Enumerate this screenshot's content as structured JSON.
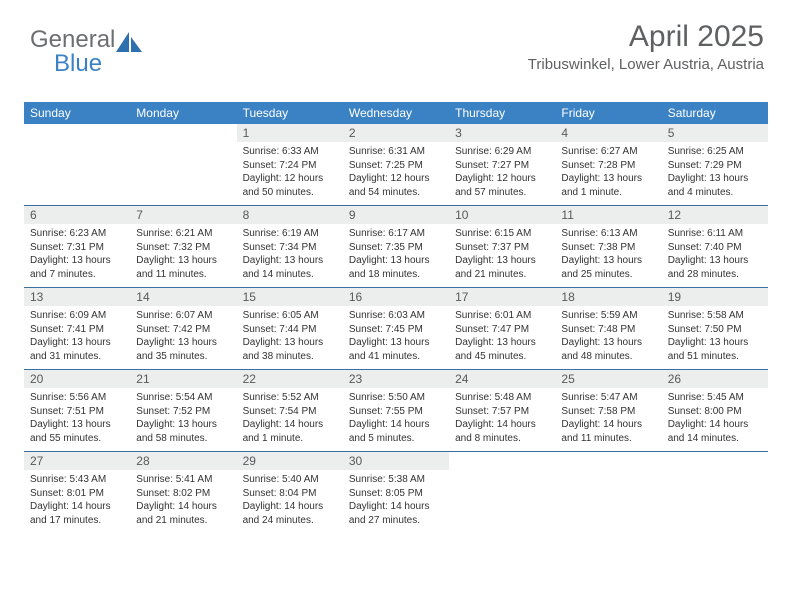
{
  "logo": {
    "word1": "General",
    "word2": "Blue"
  },
  "title": "April 2025",
  "location": "Tribuswinkel, Lower Austria, Austria",
  "colors": {
    "header_bar": "#3b82c4",
    "week_divider": "#3b6fa0",
    "daynum_band": "#eceded",
    "text_muted": "#5f6062"
  },
  "days_of_week": [
    "Sunday",
    "Monday",
    "Tuesday",
    "Wednesday",
    "Thursday",
    "Friday",
    "Saturday"
  ],
  "weeks": [
    [
      {
        "blank": true
      },
      {
        "blank": true
      },
      {
        "n": "1",
        "sunrise": "Sunrise: 6:33 AM",
        "sunset": "Sunset: 7:24 PM",
        "daylight": "Daylight: 12 hours and 50 minutes."
      },
      {
        "n": "2",
        "sunrise": "Sunrise: 6:31 AM",
        "sunset": "Sunset: 7:25 PM",
        "daylight": "Daylight: 12 hours and 54 minutes."
      },
      {
        "n": "3",
        "sunrise": "Sunrise: 6:29 AM",
        "sunset": "Sunset: 7:27 PM",
        "daylight": "Daylight: 12 hours and 57 minutes."
      },
      {
        "n": "4",
        "sunrise": "Sunrise: 6:27 AM",
        "sunset": "Sunset: 7:28 PM",
        "daylight": "Daylight: 13 hours and 1 minute."
      },
      {
        "n": "5",
        "sunrise": "Sunrise: 6:25 AM",
        "sunset": "Sunset: 7:29 PM",
        "daylight": "Daylight: 13 hours and 4 minutes."
      }
    ],
    [
      {
        "n": "6",
        "sunrise": "Sunrise: 6:23 AM",
        "sunset": "Sunset: 7:31 PM",
        "daylight": "Daylight: 13 hours and 7 minutes."
      },
      {
        "n": "7",
        "sunrise": "Sunrise: 6:21 AM",
        "sunset": "Sunset: 7:32 PM",
        "daylight": "Daylight: 13 hours and 11 minutes."
      },
      {
        "n": "8",
        "sunrise": "Sunrise: 6:19 AM",
        "sunset": "Sunset: 7:34 PM",
        "daylight": "Daylight: 13 hours and 14 minutes."
      },
      {
        "n": "9",
        "sunrise": "Sunrise: 6:17 AM",
        "sunset": "Sunset: 7:35 PM",
        "daylight": "Daylight: 13 hours and 18 minutes."
      },
      {
        "n": "10",
        "sunrise": "Sunrise: 6:15 AM",
        "sunset": "Sunset: 7:37 PM",
        "daylight": "Daylight: 13 hours and 21 minutes."
      },
      {
        "n": "11",
        "sunrise": "Sunrise: 6:13 AM",
        "sunset": "Sunset: 7:38 PM",
        "daylight": "Daylight: 13 hours and 25 minutes."
      },
      {
        "n": "12",
        "sunrise": "Sunrise: 6:11 AM",
        "sunset": "Sunset: 7:40 PM",
        "daylight": "Daylight: 13 hours and 28 minutes."
      }
    ],
    [
      {
        "n": "13",
        "sunrise": "Sunrise: 6:09 AM",
        "sunset": "Sunset: 7:41 PM",
        "daylight": "Daylight: 13 hours and 31 minutes."
      },
      {
        "n": "14",
        "sunrise": "Sunrise: 6:07 AM",
        "sunset": "Sunset: 7:42 PM",
        "daylight": "Daylight: 13 hours and 35 minutes."
      },
      {
        "n": "15",
        "sunrise": "Sunrise: 6:05 AM",
        "sunset": "Sunset: 7:44 PM",
        "daylight": "Daylight: 13 hours and 38 minutes."
      },
      {
        "n": "16",
        "sunrise": "Sunrise: 6:03 AM",
        "sunset": "Sunset: 7:45 PM",
        "daylight": "Daylight: 13 hours and 41 minutes."
      },
      {
        "n": "17",
        "sunrise": "Sunrise: 6:01 AM",
        "sunset": "Sunset: 7:47 PM",
        "daylight": "Daylight: 13 hours and 45 minutes."
      },
      {
        "n": "18",
        "sunrise": "Sunrise: 5:59 AM",
        "sunset": "Sunset: 7:48 PM",
        "daylight": "Daylight: 13 hours and 48 minutes."
      },
      {
        "n": "19",
        "sunrise": "Sunrise: 5:58 AM",
        "sunset": "Sunset: 7:50 PM",
        "daylight": "Daylight: 13 hours and 51 minutes."
      }
    ],
    [
      {
        "n": "20",
        "sunrise": "Sunrise: 5:56 AM",
        "sunset": "Sunset: 7:51 PM",
        "daylight": "Daylight: 13 hours and 55 minutes."
      },
      {
        "n": "21",
        "sunrise": "Sunrise: 5:54 AM",
        "sunset": "Sunset: 7:52 PM",
        "daylight": "Daylight: 13 hours and 58 minutes."
      },
      {
        "n": "22",
        "sunrise": "Sunrise: 5:52 AM",
        "sunset": "Sunset: 7:54 PM",
        "daylight": "Daylight: 14 hours and 1 minute."
      },
      {
        "n": "23",
        "sunrise": "Sunrise: 5:50 AM",
        "sunset": "Sunset: 7:55 PM",
        "daylight": "Daylight: 14 hours and 5 minutes."
      },
      {
        "n": "24",
        "sunrise": "Sunrise: 5:48 AM",
        "sunset": "Sunset: 7:57 PM",
        "daylight": "Daylight: 14 hours and 8 minutes."
      },
      {
        "n": "25",
        "sunrise": "Sunrise: 5:47 AM",
        "sunset": "Sunset: 7:58 PM",
        "daylight": "Daylight: 14 hours and 11 minutes."
      },
      {
        "n": "26",
        "sunrise": "Sunrise: 5:45 AM",
        "sunset": "Sunset: 8:00 PM",
        "daylight": "Daylight: 14 hours and 14 minutes."
      }
    ],
    [
      {
        "n": "27",
        "sunrise": "Sunrise: 5:43 AM",
        "sunset": "Sunset: 8:01 PM",
        "daylight": "Daylight: 14 hours and 17 minutes."
      },
      {
        "n": "28",
        "sunrise": "Sunrise: 5:41 AM",
        "sunset": "Sunset: 8:02 PM",
        "daylight": "Daylight: 14 hours and 21 minutes."
      },
      {
        "n": "29",
        "sunrise": "Sunrise: 5:40 AM",
        "sunset": "Sunset: 8:04 PM",
        "daylight": "Daylight: 14 hours and 24 minutes."
      },
      {
        "n": "30",
        "sunrise": "Sunrise: 5:38 AM",
        "sunset": "Sunset: 8:05 PM",
        "daylight": "Daylight: 14 hours and 27 minutes."
      },
      {
        "blank": true
      },
      {
        "blank": true
      },
      {
        "blank": true
      }
    ]
  ]
}
